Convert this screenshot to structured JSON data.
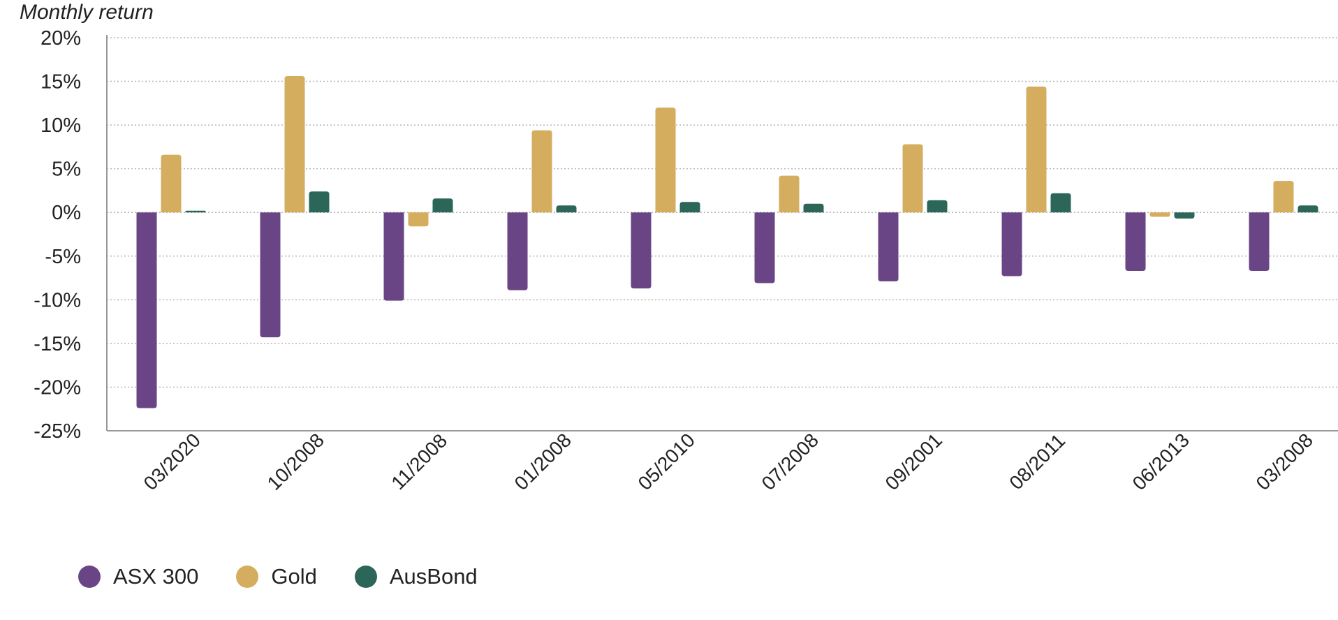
{
  "chart_data": {
    "type": "bar",
    "ylabel": "Monthly return",
    "xlabel": "",
    "ylim": [
      -25,
      20
    ],
    "yticks": [
      20,
      15,
      10,
      5,
      0,
      -5,
      -10,
      -15,
      -20,
      -25
    ],
    "ytick_labels": [
      "20%",
      "15%",
      "10%",
      "5%",
      "0%",
      "-5%",
      "-10%",
      "-15%",
      "-20%",
      "-25%"
    ],
    "categories": [
      "03/2020",
      "10/2008",
      "11/2008",
      "01/2008",
      "05/2010",
      "07/2008",
      "09/2001",
      "08/2011",
      "06/2013",
      "03/2008"
    ],
    "series": [
      {
        "name": "ASX 300",
        "color": "#6a4585",
        "values": [
          -22.4,
          -14.3,
          -10.1,
          -8.9,
          -8.7,
          -8.1,
          -7.9,
          -7.3,
          -6.7,
          -6.7
        ]
      },
      {
        "name": "Gold",
        "color": "#d4ad5f",
        "values": [
          6.6,
          15.6,
          -1.6,
          9.4,
          12.0,
          4.2,
          7.8,
          14.4,
          -0.5,
          3.6
        ]
      },
      {
        "name": "AusBond",
        "color": "#2b6658",
        "values": [
          0.2,
          2.4,
          1.6,
          0.8,
          1.2,
          1.0,
          1.4,
          2.2,
          -0.7,
          0.8
        ]
      }
    ],
    "grid": true,
    "legend_position": "bottom-left"
  }
}
